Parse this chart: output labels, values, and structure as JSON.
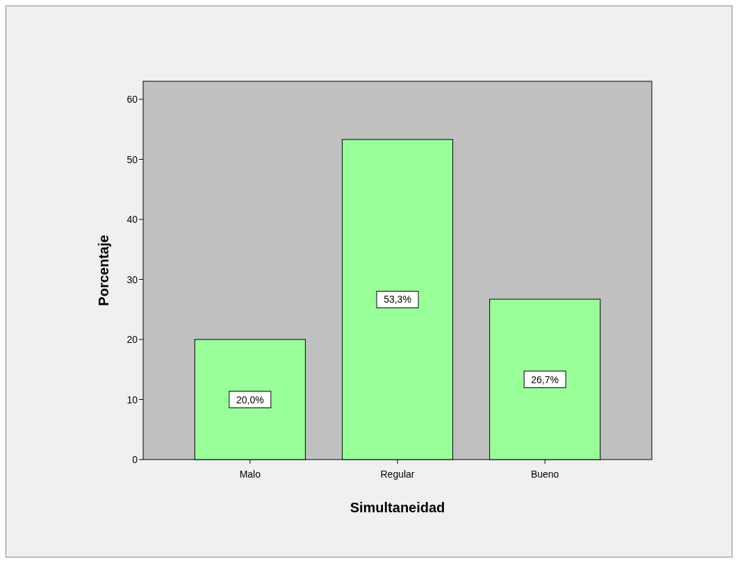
{
  "chart_data": {
    "type": "bar",
    "xlabel": "Simultaneidad",
    "ylabel": "Porcentaje",
    "categories": [
      "Malo",
      "Regular",
      "Bueno"
    ],
    "values": [
      20.0,
      53.3,
      26.7
    ],
    "value_labels": [
      "20,0%",
      "53,3%",
      "26,7%"
    ],
    "color": "#99ff99",
    "ylim": [
      0,
      63
    ],
    "yticks": [
      0,
      10,
      20,
      30,
      40,
      50,
      60
    ],
    "grid": false
  }
}
